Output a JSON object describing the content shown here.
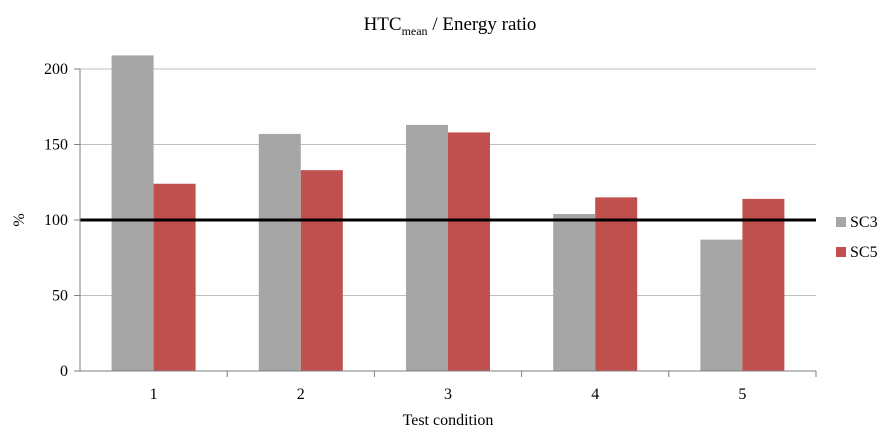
{
  "chart_data": {
    "type": "bar",
    "title": {
      "main": "HTC",
      "subscript": "mean",
      "suffix": " / Energy ratio"
    },
    "xlabel": "Test condition",
    "ylabel": "%",
    "categories": [
      "1",
      "2",
      "3",
      "4",
      "5"
    ],
    "ylim": [
      0,
      200
    ],
    "yticks": [
      "0",
      "50",
      "100",
      "150",
      "200"
    ],
    "grid": true,
    "legend_position": "right",
    "reference_line": {
      "y": 100,
      "color": "#000000"
    },
    "series": [
      {
        "name": "SC3",
        "color": "#a6a6a6",
        "values": [
          209,
          157,
          163,
          104,
          87
        ]
      },
      {
        "name": "SC5",
        "color": "#c0504d",
        "values": [
          124,
          133,
          158,
          115,
          114
        ]
      }
    ]
  }
}
